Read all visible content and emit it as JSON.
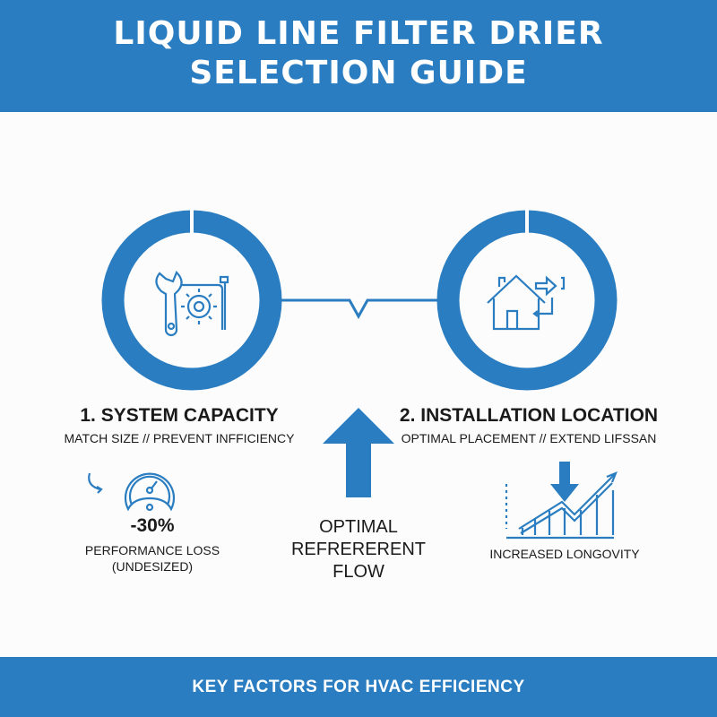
{
  "header": {
    "title_line1": "LIQUID LINE FILTER DRIER",
    "title_line2": "SELECTION GUIDE"
  },
  "colors": {
    "primary": "#2a7dc0",
    "text": "#1a1a1a",
    "background": "#fcfcfc"
  },
  "steps": [
    {
      "title": "1. SYSTEM CAPACITY",
      "subtitle": "MATCH SIZE // PREVENT INFFICIENCY",
      "icon": "wrench-gear-icon",
      "stat": "-30%",
      "stat_label_line1": "PERFORMANCE LOSS",
      "stat_label_line2": "(UNDESIZED)",
      "stat_icon": "gauge-icon"
    },
    {
      "title": "2. INSTALLATION LOCATION",
      "subtitle": "OPTIMAL PLACEMENT // EXTEND LIFSSAN",
      "icon": "house-arrow-icon",
      "stat_label": "INCREASED LONGOVITY",
      "stat_icon": "rising-chart-icon"
    }
  ],
  "center": {
    "line1": "OPTIMAL",
    "line2": "REFRERERENT",
    "line3": "FLOW",
    "icon": "up-arrow-icon"
  },
  "footer": {
    "text": "KEY FACTORS FOR HVAC EFFICIENCY"
  }
}
